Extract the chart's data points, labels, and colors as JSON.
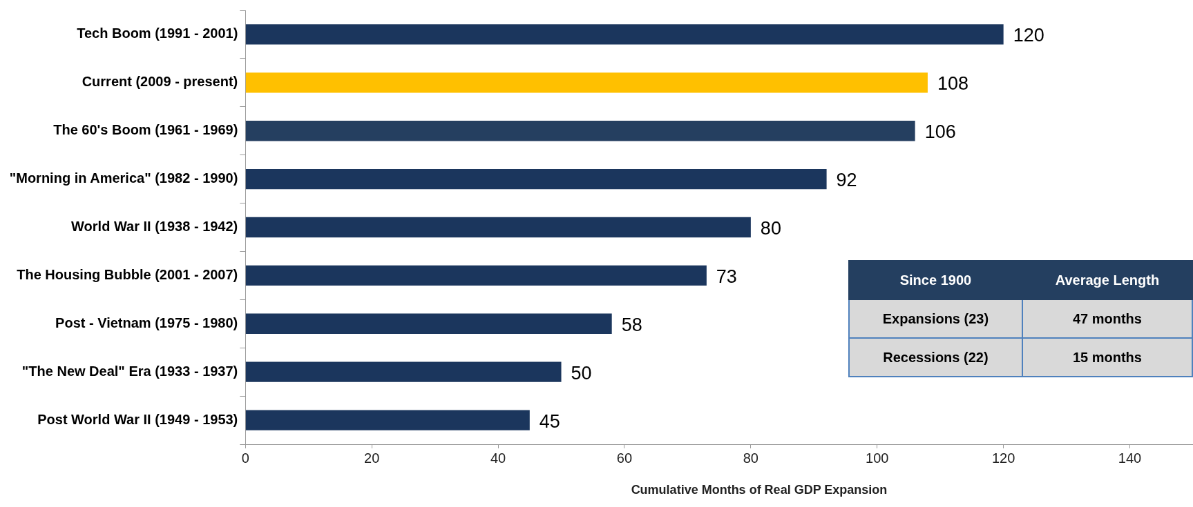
{
  "chart_data": {
    "type": "bar",
    "orientation": "horizontal",
    "xlabel": "Cumulative Months of Real GDP Expansion",
    "categories": [
      "Tech Boom (1991 - 2001)",
      "Current (2009 - present)",
      "The 60's Boom (1961 - 1969)",
      "\"Morning in America\" (1982 - 1990)",
      "World War II (1938 - 1942)",
      "The Housing Bubble (2001 - 2007)",
      "Post - Vietnam (1975 - 1980)",
      "\"The New Deal\" Era (1933 - 1937)",
      "Post World War II (1949 - 1953)"
    ],
    "values": [
      120,
      108,
      106,
      92,
      80,
      73,
      58,
      50,
      45
    ],
    "colors": [
      "#1b365d",
      "#ffc000",
      "#253f60",
      "#1b365d",
      "#1b365d",
      "#1b365d",
      "#1b365d",
      "#1b365d",
      "#1b365d"
    ],
    "xlim": [
      0,
      150
    ],
    "xticks": [
      0,
      20,
      40,
      60,
      80,
      100,
      120,
      140
    ],
    "grid": false,
    "legend": false,
    "data_labels": true,
    "annotations": [
      "Since 1900",
      "Average Length",
      "Expansions (23)",
      "47 months",
      "Recessions (22)",
      "15 months"
    ]
  }
}
